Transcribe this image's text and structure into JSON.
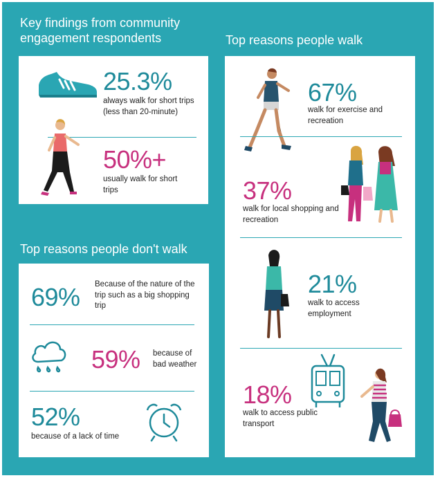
{
  "key_findings": {
    "heading": "Key findings from community engagement respondents",
    "items": [
      {
        "percent": "25.3%",
        "description": "always walk for short trips (less than 20-minute)",
        "icon": "running-shoe-icon"
      },
      {
        "percent": "50%+",
        "description": "usually walk for short trips",
        "icon": "walking-woman-illustration"
      }
    ]
  },
  "dont_walk": {
    "heading": "Top reasons people don't walk",
    "items": [
      {
        "percent": "69%",
        "description": "Because of the nature of the trip such as a big shopping trip"
      },
      {
        "percent": "59%",
        "description": "because of bad weather",
        "icon": "rain-cloud-icon"
      },
      {
        "percent": "52%",
        "description": "because of a lack of time",
        "icon": "alarm-clock-icon"
      }
    ]
  },
  "walk": {
    "heading": "Top reasons people walk",
    "items": [
      {
        "percent": "67%",
        "description": "walk for exercise and recreation",
        "icon": "runner-illustration"
      },
      {
        "percent": "37%",
        "description": "walk for local shopping and recreation",
        "icon": "shoppers-illustration"
      },
      {
        "percent": "21%",
        "description": "walk to access employment",
        "icon": "commuter-woman-illustration"
      },
      {
        "percent": "18%",
        "description": "walk to access public transport",
        "icon": "tram-icon"
      }
    ]
  },
  "colors": {
    "background": "#2aa6b3",
    "teal_text": "#1e8a9a",
    "pink_text": "#c7307e",
    "card": "#ffffff"
  }
}
